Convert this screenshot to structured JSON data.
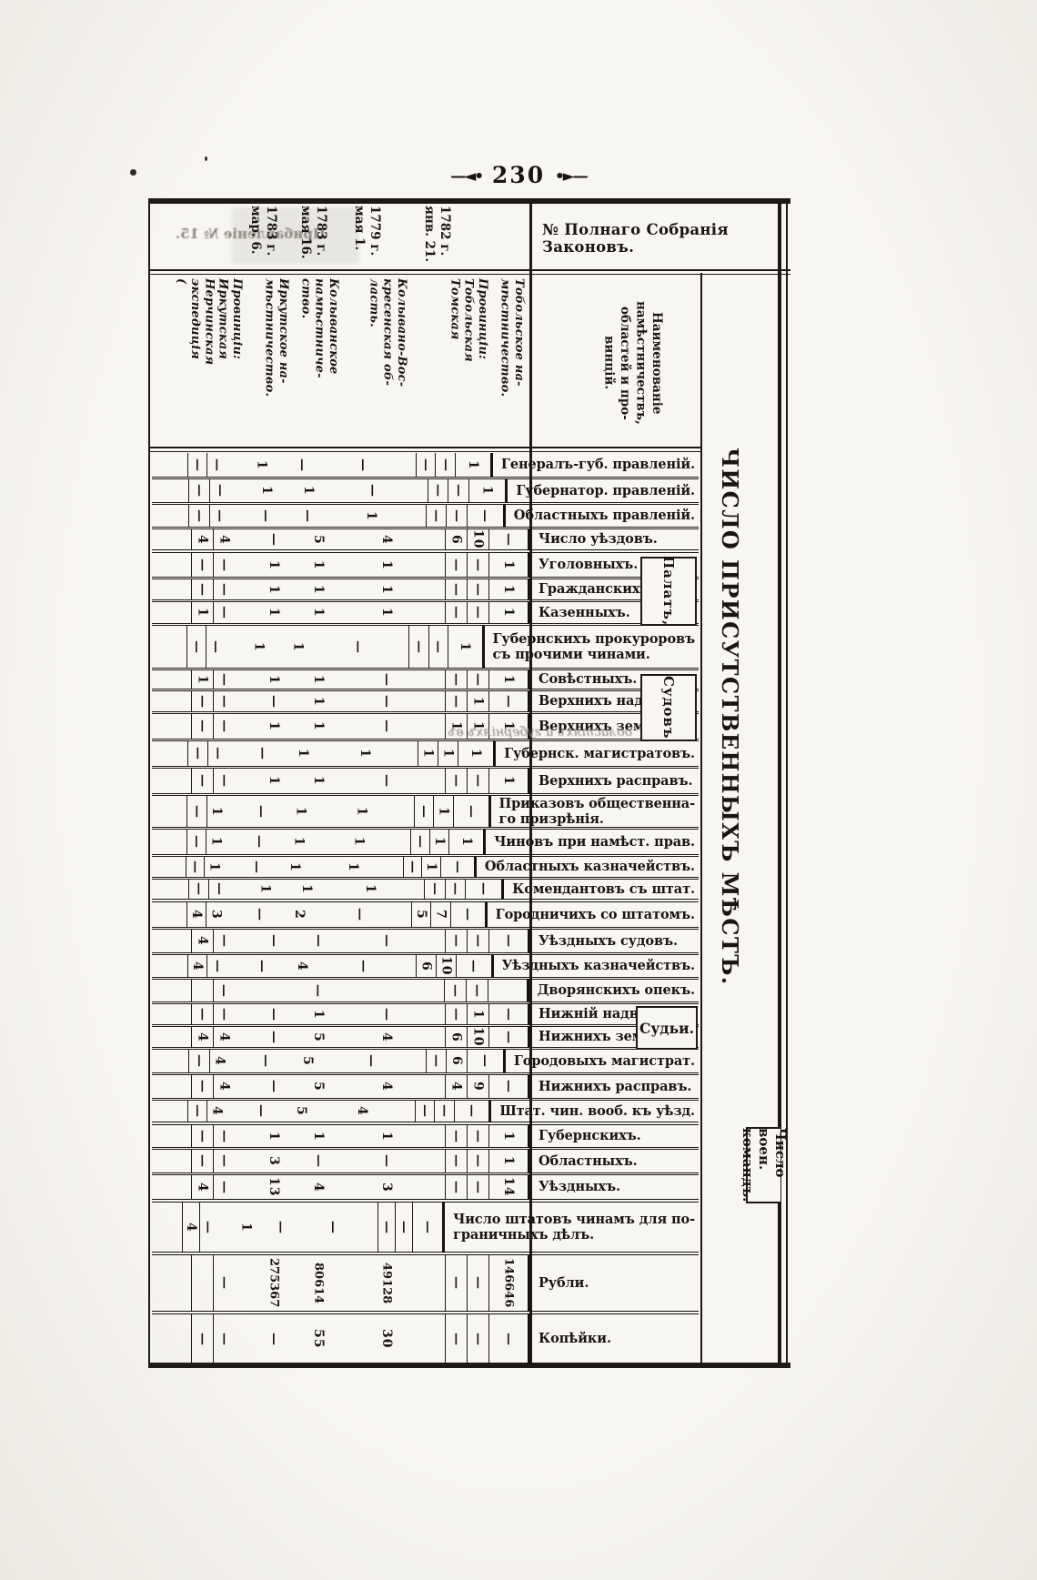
{
  "page": {
    "number": "230",
    "ornament_left": "—◄•",
    "ornament_right": "•►—"
  },
  "header": {
    "psz_label": "№ Полнаго Собранія Законовъ.",
    "naming_lines": [
      "Наименованіе",
      "намѣстничествъ,",
      "областей и про-",
      "винцій."
    ],
    "mirror_note": "Прибавленіе № 15."
  },
  "dates": [
    {
      "lines": [
        "1782 г.",
        "янв. 21."
      ]
    },
    {
      "lines": [
        "1779 г.",
        "мая 1."
      ]
    },
    {
      "lines": [
        "1783 г.",
        "мая 16."
      ]
    },
    {
      "lines": [
        "1783 г.",
        "мар. 6."
      ]
    }
  ],
  "columns": [
    {
      "id": "tobolskoe",
      "header_lines": [
        "Тобольское на-",
        "мѣстничество."
      ]
    },
    {
      "id": "prov-tobolsk",
      "header_lines": [
        "Провинціи:",
        "Тобольская",
        "Томская"
      ]
    },
    {
      "id": "kolyvano-voskr",
      "header_lines": [
        "Колывано-Вос-",
        "кресенская об-",
        "ласть."
      ]
    },
    {
      "id": "kolyvanskoe",
      "header_lines": [
        "Колыванское",
        "намѣстниче-",
        "ство."
      ]
    },
    {
      "id": "irkutskoe",
      "header_lines": [
        "Иркутское на-",
        "мѣстничество."
      ]
    },
    {
      "id": "prov-irkutsk",
      "header_lines": [
        "Провинціи:",
        "Иркутская",
        "Нерчинская",
        "экспедиція",
        "("
      ]
    }
  ],
  "title": "ЧИСЛО ПРИСУТСТВЕННЫХЪ МѢСТЪ.",
  "brackets": {
    "palat": "Палатъ,",
    "sudov": "Судовъ",
    "sudyi": "Судьи.",
    "voen_lines": [
      "Число",
      "воен.",
      "командъ."
    ]
  },
  "showthrough_band": "областяхъ и губерніяхъ въ",
  "rows": [
    {
      "label_lines": [
        "Генералъ-губ. правленій."
      ],
      "cells": [
        "",
        "—",
        "—",
        "1",
        "—",
        "—",
        "—",
        "—",
        "1"
      ]
    },
    {
      "label_lines": [
        "Губернатор. правленій."
      ],
      "cells": [
        "",
        "—",
        "—",
        "1",
        "1",
        "—",
        "—",
        "—",
        "1"
      ]
    },
    {
      "label_lines": [
        "Областныхъ правленій."
      ],
      "cells": [
        "",
        "—",
        "—",
        "—",
        "—",
        "1",
        "—",
        "—",
        "—"
      ]
    },
    {
      "label_lines": [
        "Число уѣздовъ."
      ],
      "cells": [
        "",
        "4",
        "4",
        "—",
        "5",
        "4",
        "6",
        "10",
        "—"
      ]
    },
    {
      "label_lines": [
        "Уголовныхъ."
      ],
      "cells": [
        "",
        "—",
        "—",
        "1",
        "1",
        "1",
        "—",
        "—",
        "1"
      ]
    },
    {
      "label_lines": [
        "Гражданскихъ."
      ],
      "cells": [
        "",
        "—",
        "—",
        "1",
        "1",
        "1",
        "—",
        "—",
        "1"
      ]
    },
    {
      "label_lines": [
        "Казенныхъ."
      ],
      "cells": [
        "",
        "1",
        "—",
        "1",
        "1",
        "1",
        "—",
        "—",
        "1"
      ]
    },
    {
      "label_lines": [
        "Губернскихъ прокуроровъ",
        "съ прочими чинами."
      ],
      "cells": [
        "",
        "—",
        "—",
        "1",
        "1",
        "—",
        "—",
        "—",
        "1"
      ]
    },
    {
      "label_lines": [
        "Совѣстныхъ."
      ],
      "cells": [
        "",
        "1",
        "—",
        "1",
        "1",
        "—",
        "—",
        "—",
        "1"
      ]
    },
    {
      "label_lines": [
        "Верхнихъ надвор."
      ],
      "cells": [
        "",
        "—",
        "—",
        "—",
        "1",
        "—",
        "—",
        "1",
        "—"
      ]
    },
    {
      "label_lines": [
        "Верхнихъ земск."
      ],
      "cells": [
        "",
        "—",
        "—",
        "1",
        "1",
        "—",
        "1",
        "1",
        "1"
      ]
    },
    {
      "label_lines": [
        "Губернск. магистратовъ."
      ],
      "cells": [
        "",
        "—",
        "—",
        "—",
        "1",
        "1",
        "1",
        "1",
        "1"
      ]
    },
    {
      "label_lines": [
        "Верхнихъ расправъ."
      ],
      "cells": [
        "",
        "—",
        "—",
        "1",
        "1",
        "—",
        "—",
        "—",
        "1"
      ]
    },
    {
      "label_lines": [
        "Приказовъ общественна-",
        "го призрѣнія."
      ],
      "cells": [
        "",
        "—",
        "1",
        "—",
        "1",
        "1",
        "—",
        "1",
        "—"
      ]
    },
    {
      "label_lines": [
        "Чиновъ при намѣст. прав."
      ],
      "cells": [
        "",
        "—",
        "1",
        "—",
        "1",
        "1",
        "—",
        "1",
        "1"
      ]
    },
    {
      "label_lines": [
        "Областныхъ казначействъ."
      ],
      "cells": [
        "",
        "—",
        "1",
        "—",
        "1",
        "1",
        "—",
        "1",
        "—"
      ]
    },
    {
      "label_lines": [
        "Комендантовъ съ штат."
      ],
      "cells": [
        "",
        "—",
        "—",
        "1",
        "1",
        "1",
        "—",
        "—",
        "—"
      ]
    },
    {
      "label_lines": [
        "Городничихъ со штатомъ."
      ],
      "cells": [
        "",
        "4",
        "3",
        "—",
        "2",
        "—",
        "5",
        "7",
        "—"
      ]
    },
    {
      "label_lines": [
        "Уѣздныхъ судовъ."
      ],
      "cells": [
        "",
        "4",
        "—",
        "—",
        "—",
        "—",
        "—",
        "—",
        "—"
      ]
    },
    {
      "label_lines": [
        "Уѣздныхъ казначействъ."
      ],
      "cells": [
        "",
        "4",
        "—",
        "—",
        "4",
        "—",
        "6",
        "10",
        "—"
      ]
    },
    {
      "label_lines": [
        "Дворянскихъ опекъ."
      ],
      "cells": [
        "",
        "",
        "—",
        "",
        "—",
        "",
        "—",
        "—",
        ""
      ]
    },
    {
      "label_lines": [
        "Нижній надворн."
      ],
      "cells": [
        "",
        "—",
        "—",
        "—",
        "1",
        "—",
        "—",
        "1",
        "—"
      ]
    },
    {
      "label_lines": [
        "Нижнихъ земскихъ."
      ],
      "cells": [
        "",
        "4",
        "4",
        "—",
        "5",
        "4",
        "6",
        "10",
        "—"
      ]
    },
    {
      "label_lines": [
        "Городовыхъ магистрат."
      ],
      "cells": [
        "",
        "—",
        "4",
        "—",
        "5",
        "—",
        "—",
        "6",
        "—"
      ]
    },
    {
      "label_lines": [
        "Нижнихъ расправъ."
      ],
      "cells": [
        "",
        "—",
        "4",
        "—",
        "5",
        "4",
        "4",
        "9",
        "—"
      ]
    },
    {
      "label_lines": [
        "Штат. чин. вооб. къ уѣзд."
      ],
      "cells": [
        "",
        "—",
        "4",
        "—",
        "5",
        "4",
        "—",
        "—",
        "—"
      ]
    },
    {
      "label_lines": [
        "Губернскихъ."
      ],
      "cells": [
        "",
        "—",
        "—",
        "1",
        "1",
        "1",
        "—",
        "—",
        "1"
      ]
    },
    {
      "label_lines": [
        "Областныхъ."
      ],
      "cells": [
        "",
        "—",
        "—",
        "3",
        "—",
        "—",
        "—",
        "—",
        "1"
      ]
    },
    {
      "label_lines": [
        "Уѣздныхъ."
      ],
      "cells": [
        "",
        "4",
        "—",
        "13",
        "4",
        "3",
        "—",
        "—",
        "14"
      ]
    },
    {
      "label_lines": [
        "Число штатовъ чинамъ для по-",
        "граничныхъ дѣлъ."
      ],
      "cells": [
        "",
        "4",
        "—",
        "1",
        "—",
        "—",
        "—",
        "—",
        "—"
      ]
    },
    {
      "label_lines": [
        "Рубли."
      ],
      "cells": [
        "",
        "",
        "—",
        "275367",
        "80614",
        "49128",
        "—",
        "—",
        "146646"
      ]
    },
    {
      "label_lines": [
        "Копѣйки."
      ],
      "cells": [
        "",
        "—",
        "—",
        "—",
        "55",
        "30",
        "—",
        "—",
        "—"
      ]
    }
  ]
}
